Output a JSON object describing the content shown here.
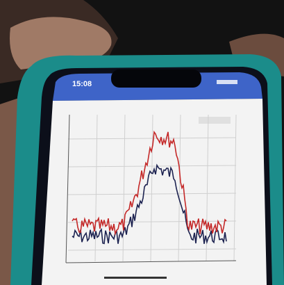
{
  "status_bar": {
    "time": "15:08"
  }
}
